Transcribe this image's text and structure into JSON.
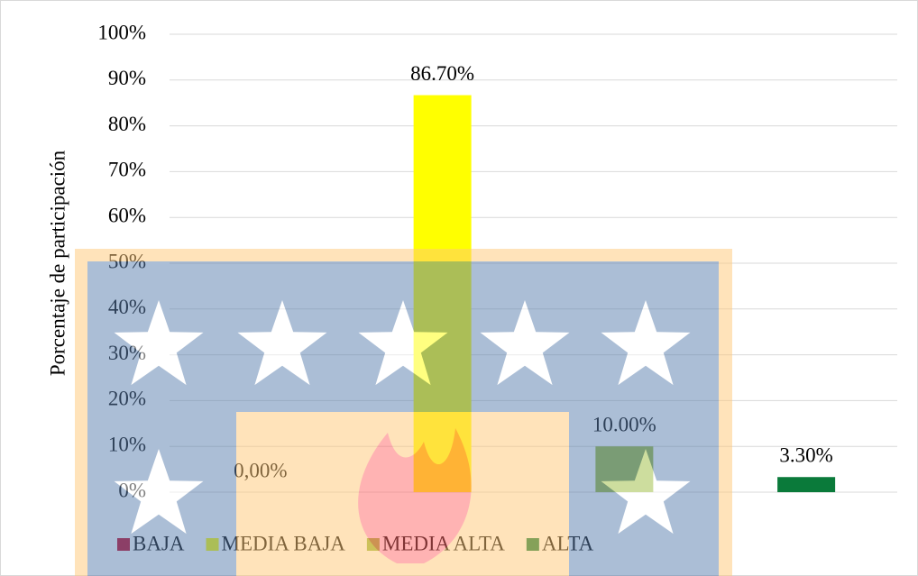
{
  "chart_data": {
    "type": "bar",
    "y_label": "Porcentaje de participación",
    "categories": [
      null
    ],
    "series": [
      {
        "name": "BAJA",
        "color": "#c0001f",
        "values": [
          0
        ],
        "value_labels": [
          "0,00%"
        ]
      },
      {
        "name": "MEDIA BAJA",
        "color": "#ffff00",
        "values": [
          86.7
        ],
        "value_labels": [
          "86.70%"
        ]
      },
      {
        "name": "MEDIA ALTA",
        "color": "#9bbb3c",
        "values": [
          10
        ],
        "value_labels": [
          "10.00%"
        ]
      },
      {
        "name": "ALTA",
        "color": "#0a7a3a",
        "values": [
          3.3
        ],
        "value_labels": [
          "3.30%"
        ]
      }
    ],
    "ylim": [
      0,
      100
    ],
    "yticks": [
      {
        "value": 0,
        "label": "0%"
      },
      {
        "value": 10,
        "label": "10%"
      },
      {
        "value": 20,
        "label": "20%"
      },
      {
        "value": 30,
        "label": "30%"
      },
      {
        "value": 40,
        "label": "40%"
      },
      {
        "value": 50,
        "label": "50%"
      },
      {
        "value": 60,
        "label": "60%"
      },
      {
        "value": 70,
        "label": "70%"
      },
      {
        "value": 80,
        "label": "80%"
      },
      {
        "value": 90,
        "label": "90%"
      },
      {
        "value": 100,
        "label": "100%"
      }
    ],
    "grid": true,
    "legend": "bottom"
  }
}
